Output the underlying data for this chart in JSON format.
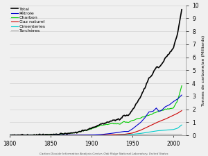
{
  "title": "",
  "ylabel": "Tonnes de carbone/an (Milliards)",
  "source": "Carbon Dioxide Information Analysis Center, Oak Ridge National Laboratory, United States",
  "xlim": [
    1800,
    2015
  ],
  "ylim": [
    0,
    10
  ],
  "yticks": [
    0,
    1,
    2,
    3,
    4,
    5,
    6,
    7,
    8,
    9,
    10
  ],
  "xticks": [
    1800,
    1850,
    1900,
    1950,
    2000
  ],
  "legend": [
    "Total",
    "Pétrole",
    "Charbon",
    "Gaz naturel",
    "Cimenteries",
    "Torchères"
  ],
  "colors": {
    "Total": "#000000",
    "Petrole": "#0000cc",
    "Charbon": "#00cc00",
    "Gaz": "#cc0000",
    "Ciment": "#00cccc",
    "Torch": "#aaaaaa"
  },
  "bg_color": "#f0f0f0",
  "charbon_keys": [
    [
      1800,
      0.003
    ],
    [
      1820,
      0.01
    ],
    [
      1840,
      0.035
    ],
    [
      1860,
      0.08
    ],
    [
      1880,
      0.2
    ],
    [
      1900,
      0.5
    ],
    [
      1910,
      0.75
    ],
    [
      1920,
      0.85
    ],
    [
      1925,
      0.9
    ],
    [
      1930,
      0.9
    ],
    [
      1935,
      0.88
    ],
    [
      1940,
      1.05
    ],
    [
      1945,
      1.0
    ],
    [
      1950,
      1.15
    ],
    [
      1960,
      1.35
    ],
    [
      1970,
      1.55
    ],
    [
      1980,
      1.8
    ],
    [
      1990,
      2.0
    ],
    [
      2000,
      2.1
    ],
    [
      2005,
      2.7
    ],
    [
      2010,
      3.8
    ]
  ],
  "petrole_keys": [
    [
      1800,
      0.0
    ],
    [
      1860,
      0.001
    ],
    [
      1880,
      0.005
    ],
    [
      1900,
      0.02
    ],
    [
      1910,
      0.05
    ],
    [
      1920,
      0.12
    ],
    [
      1930,
      0.2
    ],
    [
      1940,
      0.3
    ],
    [
      1945,
      0.3
    ],
    [
      1950,
      0.5
    ],
    [
      1960,
      1.0
    ],
    [
      1965,
      1.35
    ],
    [
      1970,
      1.8
    ],
    [
      1975,
      1.85
    ],
    [
      1979,
      2.1
    ],
    [
      1982,
      1.85
    ],
    [
      1985,
      1.9
    ],
    [
      1990,
      2.2
    ],
    [
      1995,
      2.35
    ],
    [
      2000,
      2.6
    ],
    [
      2005,
      2.8
    ],
    [
      2010,
      3.1
    ]
  ],
  "gaz_keys": [
    [
      1800,
      0.0
    ],
    [
      1900,
      0.002
    ],
    [
      1920,
      0.02
    ],
    [
      1940,
      0.08
    ],
    [
      1950,
      0.18
    ],
    [
      1960,
      0.4
    ],
    [
      1970,
      0.7
    ],
    [
      1980,
      1.0
    ],
    [
      1990,
      1.25
    ],
    [
      2000,
      1.55
    ],
    [
      2005,
      1.7
    ],
    [
      2010,
      1.9
    ]
  ],
  "ciment_keys": [
    [
      1800,
      0.0
    ],
    [
      1900,
      0.005
    ],
    [
      1920,
      0.02
    ],
    [
      1940,
      0.05
    ],
    [
      1950,
      0.08
    ],
    [
      1960,
      0.15
    ],
    [
      1970,
      0.25
    ],
    [
      1980,
      0.35
    ],
    [
      1990,
      0.4
    ],
    [
      2000,
      0.45
    ],
    [
      2005,
      0.55
    ],
    [
      2010,
      0.8
    ]
  ],
  "torch_keys": [
    [
      1800,
      0.0
    ],
    [
      1920,
      0.0
    ],
    [
      1950,
      0.05
    ],
    [
      1970,
      0.1
    ],
    [
      1980,
      0.1
    ],
    [
      1990,
      0.09
    ],
    [
      2000,
      0.09
    ],
    [
      2010,
      0.08
    ]
  ]
}
